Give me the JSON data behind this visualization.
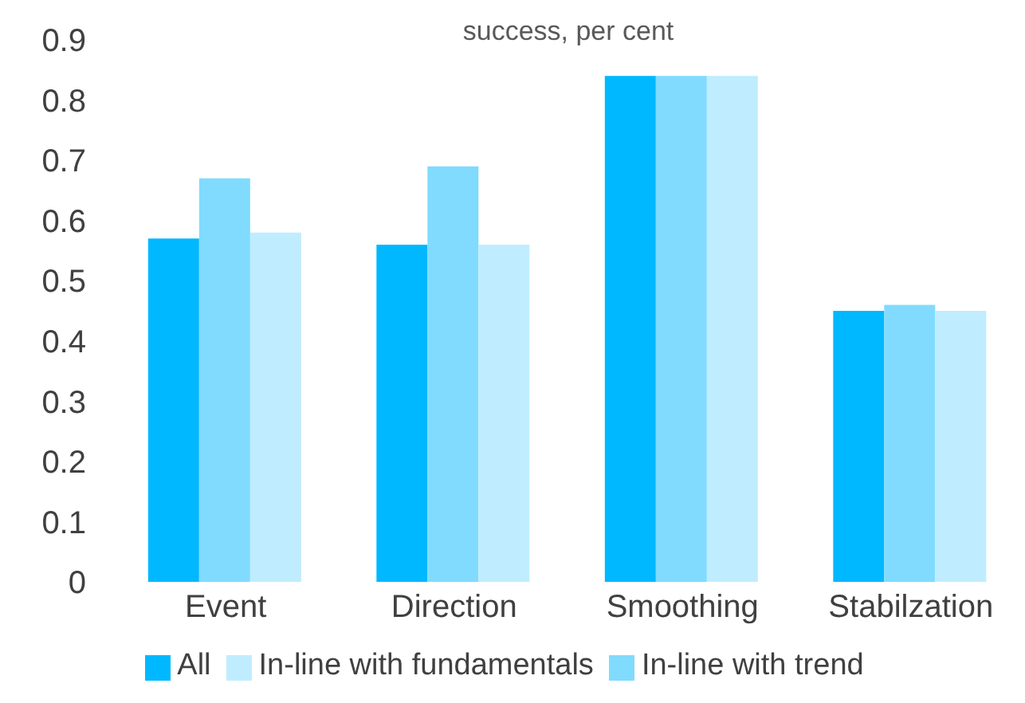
{
  "chart_data": {
    "type": "bar",
    "title": "success, per cent",
    "categories": [
      "Event",
      "Direction",
      "Smoothing",
      "Stabilzation"
    ],
    "series": [
      {
        "name": "All",
        "color": "#00b8ff",
        "values": [
          0.57,
          0.56,
          0.84,
          0.45
        ]
      },
      {
        "name": "In-line with trend",
        "color": "#80dbff",
        "values": [
          0.67,
          0.69,
          0.84,
          0.46
        ]
      },
      {
        "name": "In-line with fundamentals",
        "color": "#bfedff",
        "values": [
          0.58,
          0.56,
          0.84,
          0.45
        ]
      }
    ],
    "ylim": [
      0,
      0.9
    ],
    "yticks": [
      0,
      0.1,
      0.2,
      0.3,
      0.4,
      0.5,
      0.6,
      0.7,
      0.8,
      0.9
    ],
    "legend": "bottom"
  }
}
